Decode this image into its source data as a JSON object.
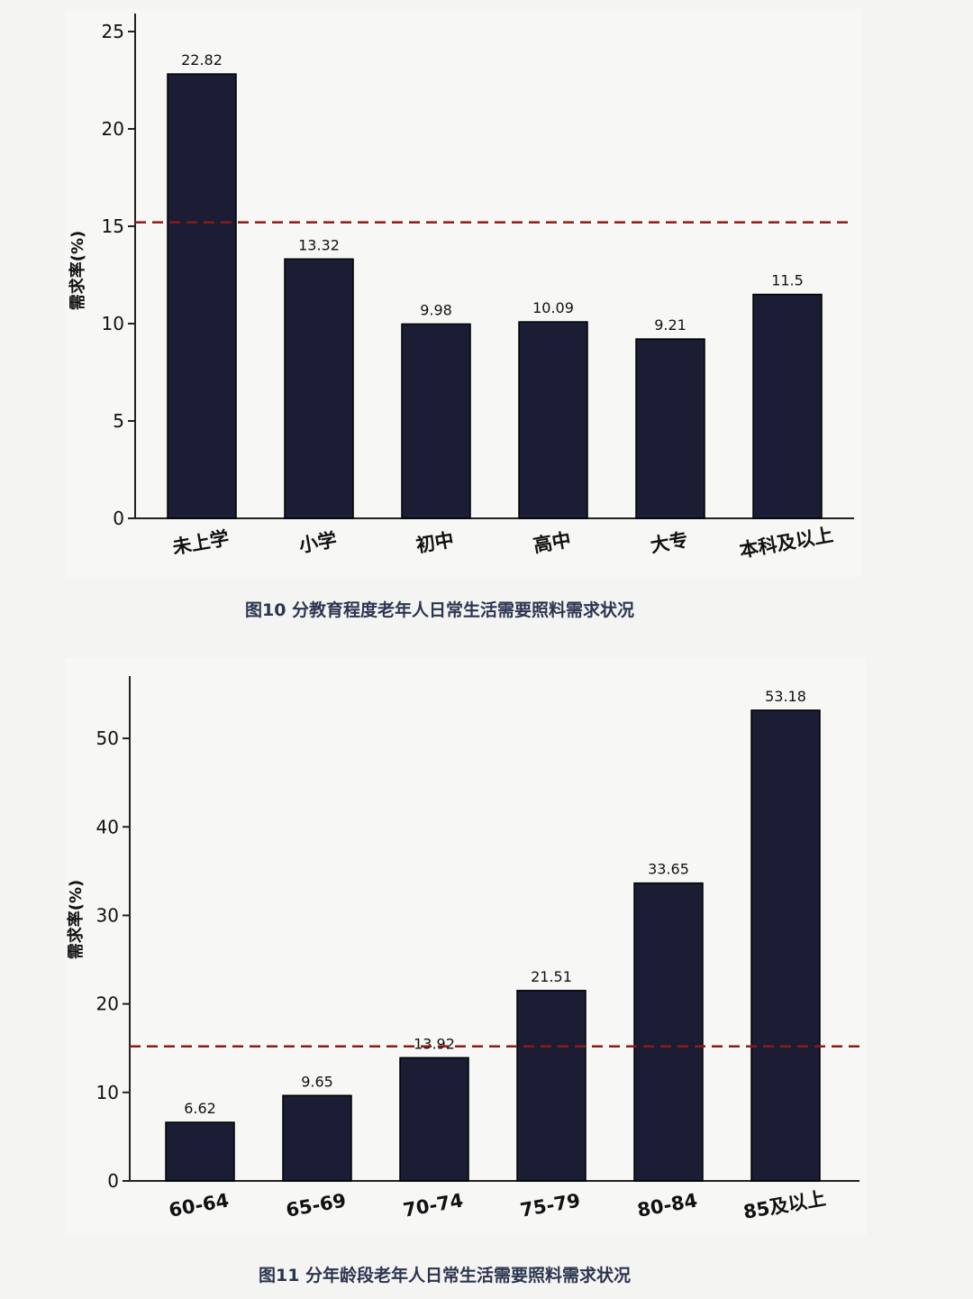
{
  "chart_data": [
    {
      "type": "bar",
      "ylabel": "需求率(%)",
      "categories": [
        "未上学",
        "小学",
        "初中",
        "高中",
        "大专",
        "本科及以上"
      ],
      "values": [
        22.82,
        13.32,
        9.98,
        10.09,
        9.21,
        11.5
      ],
      "value_labels": [
        "22.82",
        "13.32",
        "9.98",
        "10.09",
        "9.21",
        "11.5"
      ],
      "ylim": [
        0,
        25
      ],
      "yticks": [
        0,
        5,
        10,
        15,
        20,
        25
      ],
      "reference_line": {
        "y": 15.2,
        "style": "dashed",
        "color": "#8b1a1a"
      },
      "bar_color": "#1a1d33",
      "grid": false
    },
    {
      "type": "bar",
      "ylabel": "需求率(%)",
      "categories": [
        "60-64",
        "65-69",
        "70-74",
        "75-79",
        "80-84",
        "85及以上"
      ],
      "values": [
        6.62,
        9.65,
        13.92,
        21.51,
        33.65,
        53.18
      ],
      "value_labels": [
        "6.62",
        "9.65",
        "13.92",
        "21.51",
        "33.65",
        "53.18"
      ],
      "ylim": [
        0,
        55
      ],
      "yticks": [
        0,
        10,
        20,
        30,
        40,
        50
      ],
      "reference_line": {
        "y": 15.2,
        "style": "dashed",
        "color": "#8b1a1a"
      },
      "bar_color": "#1a1d33",
      "grid": false
    }
  ],
  "captions": [
    "图10 分教育程度老年人日常生活需要照料需求状况",
    "图11 分年龄段老年人日常生活需要照料需求状况"
  ]
}
